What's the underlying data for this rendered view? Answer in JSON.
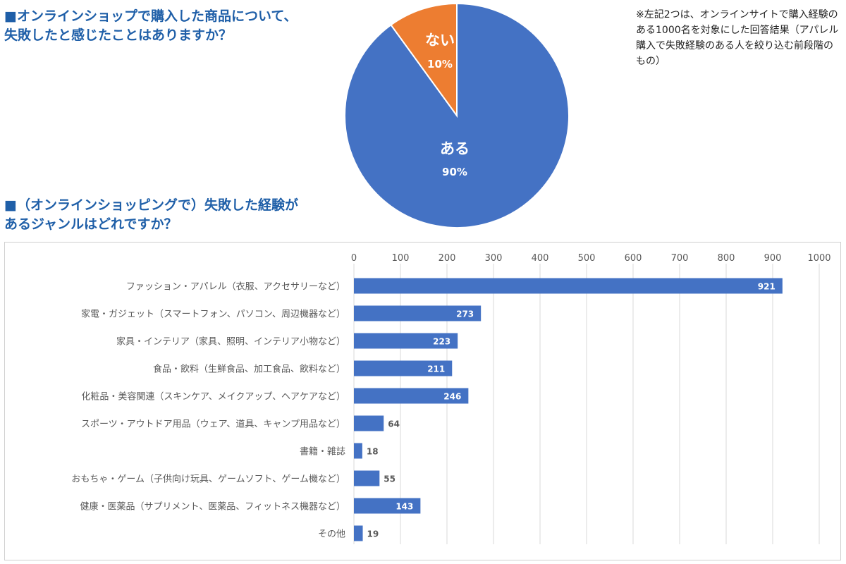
{
  "pie_section": {
    "title": "■オンラインショップで購入した商品について、\n失敗したと感じたことはありますか？"
  },
  "bar_section": {
    "title": "■（オンラインショッピングで）失敗した経験が\nあるジャンルはどれですか？"
  },
  "note": "※左記2つは、オンラインサイトで購入経験のある1000名を対象にした回答結果（アパレル購入で失敗経験のある人を絞り込む前段階のもの）",
  "colors": {
    "heading": "#1f5fa8",
    "blue": "#4472c4",
    "orange": "#ed7d31",
    "grid": "#d9d9d9",
    "label": "#595959",
    "label_dark": "#404040"
  },
  "chart_data": [
    {
      "type": "pie",
      "title": "■オンラインショップで購入した商品について、失敗したと感じたことはありますか？",
      "slices": [
        {
          "label": "ある",
          "value": 90,
          "value_label": "90%",
          "color": "#4472c4"
        },
        {
          "label": "ない",
          "value": 10,
          "value_label": "10%",
          "color": "#ed7d31"
        }
      ],
      "start": "12 o'clock, counter-clockwise for ない"
    },
    {
      "type": "bar",
      "orientation": "horizontal",
      "title": "■（オンラインショッピングで）失敗した経験があるジャンルはどれですか？",
      "xlim": [
        0,
        1000
      ],
      "xticks": [
        0,
        100,
        200,
        300,
        400,
        500,
        600,
        700,
        800,
        900,
        1000
      ],
      "grid": true,
      "axis_position": "top",
      "color": "#4472c4",
      "categories": [
        "ファッション・アパレル（衣服、アクセサリーなど）",
        "家電・ガジェット（スマートフォン、パソコン、周辺機器など）",
        "家具・インテリア（家具、照明、インテリア小物など）",
        "食品・飲料（生鮮食品、加工食品、飲料など）",
        "化粧品・美容関連（スキンケア、メイクアップ、ヘアケアなど）",
        "スポーツ・アウトドア用品（ウェア、道具、キャンプ用品など）",
        "書籍・雑誌",
        "おもちゃ・ゲーム（子供向け玩具、ゲームソフト、ゲーム機など）",
        "健康・医薬品（サプリメント、医薬品、フィットネス機器など）",
        "その他"
      ],
      "values": [
        921,
        273,
        223,
        211,
        246,
        64,
        18,
        55,
        143,
        19
      ]
    }
  ]
}
